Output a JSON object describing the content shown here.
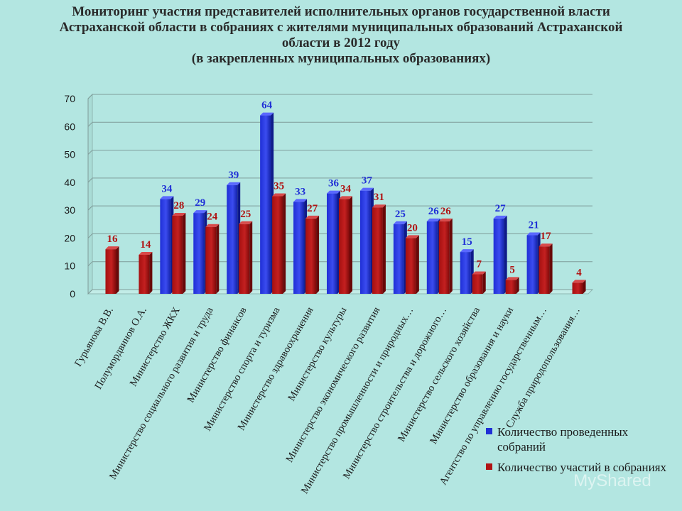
{
  "title_lines": [
    "Мониторинг участия представителей исполнительных органов государственной власти",
    "Астраханской области в собраниях с жителями муниципальных образований Астраханской",
    "области в 2012 году",
    "(в закрепленных муниципальных образованиях)"
  ],
  "watermark": "MyShared",
  "colors": {
    "series1": "#1f2fd6",
    "series2": "#b01414",
    "background": "#b3e6e1"
  },
  "chart_data": {
    "type": "bar",
    "title": "Мониторинг участия представителей исполнительных органов государственной власти Астраханской области в собраниях с жителями муниципальных образований Астраханской области в 2012 году (в закрепленных муниципальных образованиях)",
    "categories": [
      "Гурьянова В.В.",
      "Полумордвинов О.А.",
      "Министерство ЖКХ",
      "Министерство социального развития и труда",
      "Министерство финансов",
      "Министерство спорта и туризма",
      "Министерство здравоохранения",
      "Министерство культуры",
      "Министерство экономического развития",
      "Министерство промышленности и природных…",
      "Министерство строительства и дорожного…",
      "Министерство сельского хозяйства",
      "Министерство образования и науки",
      "Агентство по управлению государственным…",
      "Служба природопользования…"
    ],
    "series": [
      {
        "name": "Количество проведенных собраний",
        "values": [
          null,
          null,
          34,
          29,
          39,
          64,
          33,
          36,
          37,
          25,
          26,
          15,
          27,
          21,
          null
        ]
      },
      {
        "name": "Количество участий в собраниях",
        "values": [
          16,
          14,
          28,
          24,
          25,
          35,
          27,
          34,
          31,
          20,
          26,
          7,
          5,
          17,
          4
        ]
      }
    ],
    "y_ticks": [
      0,
      10,
      20,
      30,
      40,
      50,
      60,
      70
    ],
    "ylim": [
      0,
      70
    ],
    "grid": true,
    "legend": "bottom-right"
  }
}
